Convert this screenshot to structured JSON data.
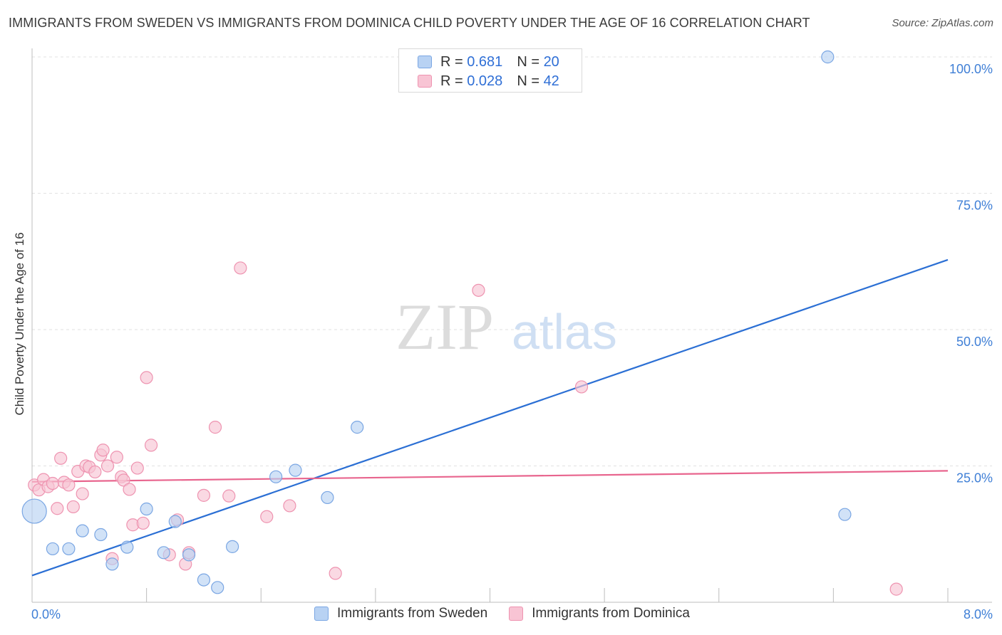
{
  "title": "IMMIGRANTS FROM SWEDEN VS IMMIGRANTS FROM DOMINICA CHILD POVERTY UNDER THE AGE OF 16 CORRELATION CHART",
  "source": "Source: ZipAtlas.com",
  "watermark": {
    "zip": "ZIP",
    "atlas": "atlas"
  },
  "legend_top": {
    "rows": [
      {
        "r_label": "R =",
        "r_value": "0.681",
        "n_label": "N =",
        "n_value": "20"
      },
      {
        "r_label": "R =",
        "r_value": "0.028",
        "n_label": "N =",
        "n_value": "42"
      }
    ]
  },
  "colors": {
    "sweden_fill": "#b8d2f3",
    "sweden_stroke": "#7aa6e3",
    "sweden_line": "#2b6fd4",
    "dominica_fill": "#f8c4d4",
    "dominica_stroke": "#ee93b0",
    "dominica_line": "#e8658e",
    "axis_label": "#3f7fd6",
    "grid": "#e2e2e2"
  },
  "chart_data": {
    "type": "scatter",
    "title": "IMMIGRANTS FROM SWEDEN VS IMMIGRANTS FROM DOMINICA CHILD POVERTY UNDER THE AGE OF 16 CORRELATION CHART",
    "xlabel": "",
    "ylabel": "Child Poverty Under the Age of 16",
    "xlim": [
      0,
      8
    ],
    "ylim": [
      0,
      100
    ],
    "x_tick_labels": [
      "0.0%",
      "8.0%"
    ],
    "y_tick_values": [
      25,
      50,
      75,
      100
    ],
    "y_tick_labels": [
      "25.0%",
      "50.0%",
      "75.0%",
      "100.0%"
    ],
    "legend": [
      "Immigrants from Sweden",
      "Immigrants from Dominica"
    ],
    "series": [
      {
        "name": "Immigrants from Sweden",
        "R": 0.681,
        "N": 20,
        "trend": {
          "x": [
            0,
            8
          ],
          "y": [
            4.9,
            62.8
          ]
        },
        "points": [
          {
            "x": 0.02,
            "y": 16.7,
            "big": true
          },
          {
            "x": 0.18,
            "y": 9.8
          },
          {
            "x": 0.32,
            "y": 9.8
          },
          {
            "x": 0.44,
            "y": 13.1
          },
          {
            "x": 0.6,
            "y": 12.4
          },
          {
            "x": 0.7,
            "y": 7.0
          },
          {
            "x": 0.83,
            "y": 10.1
          },
          {
            "x": 1.0,
            "y": 17.1
          },
          {
            "x": 1.15,
            "y": 9.1
          },
          {
            "x": 1.25,
            "y": 14.8
          },
          {
            "x": 1.37,
            "y": 8.7
          },
          {
            "x": 1.5,
            "y": 4.1
          },
          {
            "x": 1.62,
            "y": 2.7
          },
          {
            "x": 1.75,
            "y": 10.2
          },
          {
            "x": 2.13,
            "y": 23.0
          },
          {
            "x": 2.3,
            "y": 24.2
          },
          {
            "x": 2.58,
            "y": 19.2
          },
          {
            "x": 2.84,
            "y": 32.1
          },
          {
            "x": 6.95,
            "y": 100.0
          },
          {
            "x": 7.1,
            "y": 16.1
          }
        ]
      },
      {
        "name": "Immigrants from Dominica",
        "R": 0.028,
        "N": 42,
        "trend": {
          "x": [
            0,
            8
          ],
          "y": [
            22.1,
            24.1
          ]
        },
        "points": [
          {
            "x": 0.02,
            "y": 21.5
          },
          {
            "x": 0.06,
            "y": 20.6
          },
          {
            "x": 0.1,
            "y": 22.5
          },
          {
            "x": 0.14,
            "y": 21.2
          },
          {
            "x": 0.18,
            "y": 21.8
          },
          {
            "x": 0.22,
            "y": 17.2
          },
          {
            "x": 0.25,
            "y": 26.4
          },
          {
            "x": 0.28,
            "y": 22.0
          },
          {
            "x": 0.32,
            "y": 21.5
          },
          {
            "x": 0.36,
            "y": 17.5
          },
          {
            "x": 0.4,
            "y": 24.0
          },
          {
            "x": 0.44,
            "y": 19.9
          },
          {
            "x": 0.47,
            "y": 25.0
          },
          {
            "x": 0.5,
            "y": 24.8
          },
          {
            "x": 0.55,
            "y": 23.9
          },
          {
            "x": 0.6,
            "y": 27.0
          },
          {
            "x": 0.62,
            "y": 27.9
          },
          {
            "x": 0.66,
            "y": 25.0
          },
          {
            "x": 0.7,
            "y": 8.0
          },
          {
            "x": 0.74,
            "y": 26.6
          },
          {
            "x": 0.78,
            "y": 23.0
          },
          {
            "x": 0.8,
            "y": 22.4
          },
          {
            "x": 0.85,
            "y": 20.7
          },
          {
            "x": 0.88,
            "y": 14.2
          },
          {
            "x": 0.92,
            "y": 24.6
          },
          {
            "x": 0.97,
            "y": 14.5
          },
          {
            "x": 1.0,
            "y": 41.2
          },
          {
            "x": 1.04,
            "y": 28.8
          },
          {
            "x": 1.2,
            "y": 8.7
          },
          {
            "x": 1.27,
            "y": 15.1
          },
          {
            "x": 1.34,
            "y": 7.0
          },
          {
            "x": 1.37,
            "y": 9.1
          },
          {
            "x": 1.5,
            "y": 19.6
          },
          {
            "x": 1.6,
            "y": 32.1
          },
          {
            "x": 1.72,
            "y": 19.5
          },
          {
            "x": 1.82,
            "y": 61.3
          },
          {
            "x": 2.05,
            "y": 15.7
          },
          {
            "x": 2.25,
            "y": 17.7
          },
          {
            "x": 2.65,
            "y": 5.3
          },
          {
            "x": 3.9,
            "y": 57.2
          },
          {
            "x": 4.8,
            "y": 39.5
          },
          {
            "x": 7.55,
            "y": 2.4
          }
        ]
      }
    ]
  }
}
